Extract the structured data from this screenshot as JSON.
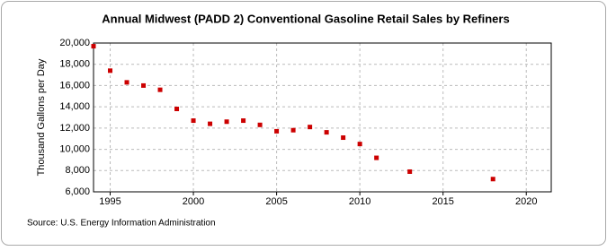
{
  "chart_data": {
    "type": "scatter",
    "title": "Annual Midwest (PADD 2) Conventional Gasoline Retail Sales by Refiners",
    "y_label": "Thousand Gallons per Day",
    "source": "Source: U.S. Energy Information Administration",
    "x": [
      1994,
      1995,
      1996,
      1997,
      1998,
      1999,
      2000,
      2001,
      2002,
      2003,
      2004,
      2005,
      2006,
      2007,
      2008,
      2009,
      2010,
      2011,
      2013,
      2018
    ],
    "series": [
      {
        "name": "Conventional Gasoline Retail Sales",
        "color": "#cc0000",
        "values": [
          19700,
          17400,
          16300,
          16000,
          15600,
          13800,
          12700,
          12400,
          12600,
          12700,
          12300,
          11700,
          11800,
          12100,
          11600,
          11100,
          10500,
          9200,
          7900,
          7200
        ]
      }
    ],
    "xlim": [
      1994,
      2021.5
    ],
    "xticks": [
      1995,
      2000,
      2005,
      2010,
      2015,
      2020
    ],
    "ylim": [
      6000,
      20000
    ],
    "yticks": [
      {
        "value": 6000,
        "label": "6,000"
      },
      {
        "value": 8000,
        "label": "8,000"
      },
      {
        "value": 10000,
        "label": "10,000"
      },
      {
        "value": 12000,
        "label": "12,000"
      },
      {
        "value": 14000,
        "label": "14,000"
      },
      {
        "value": 16000,
        "label": "16,000"
      },
      {
        "value": 18000,
        "label": "18,000"
      },
      {
        "value": 20000,
        "label": "20,000"
      }
    ],
    "grid": true
  }
}
